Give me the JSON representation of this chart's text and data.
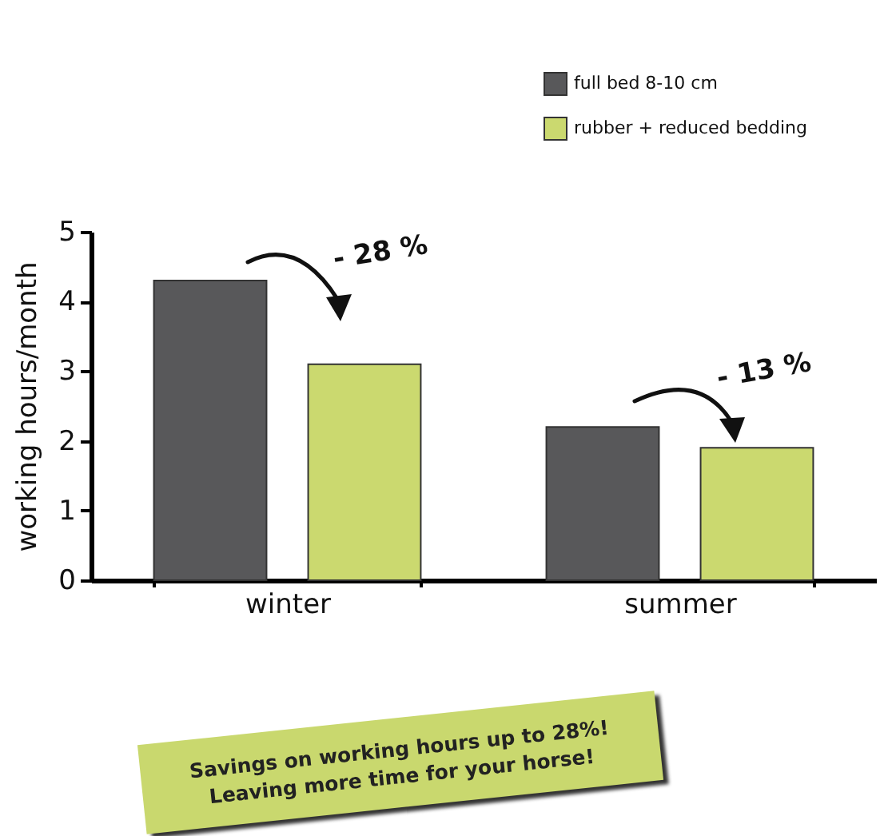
{
  "chart_data": {
    "type": "bar",
    "categories": [
      "winter",
      "summer"
    ],
    "series": [
      {
        "name": "full bed 8-10 cm",
        "color": "#58585a",
        "values": [
          4.3,
          2.2
        ]
      },
      {
        "name": "rubber + reduced bedding",
        "color": "#cbd96f",
        "values": [
          3.1,
          1.9
        ]
      }
    ],
    "ylabel": "working hours/month",
    "ylim": [
      0,
      5
    ],
    "yticks": [
      0,
      1,
      2,
      3,
      4,
      5
    ],
    "grid": false,
    "legend": "top right",
    "annotations": [
      "- 28 %",
      "- 13 %",
      "Savings on working hours up to 28%!\nLeaving more time for your horse!"
    ]
  }
}
